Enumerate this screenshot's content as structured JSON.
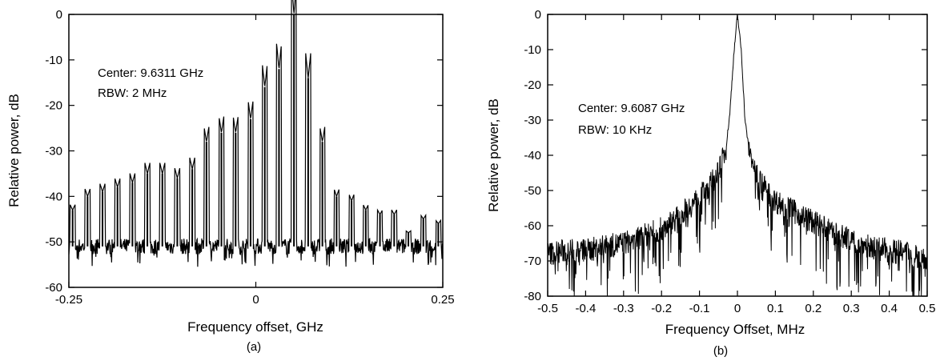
{
  "chart_data": [
    {
      "type": "line",
      "panel_label": "(a)",
      "xlabel": "Frequency offset, GHz",
      "ylabel": "Relative power, dB",
      "xlim": [
        -0.25,
        0.25
      ],
      "ylim": [
        -60,
        0
      ],
      "xticks": [
        -0.25,
        0,
        0.25
      ],
      "xtick_labels": [
        "-0.25",
        "0",
        "0.25"
      ],
      "yticks": [
        0,
        -10,
        -20,
        -30,
        -40,
        -50,
        -60
      ],
      "ytick_labels": [
        "0",
        "-10",
        "-20",
        "-30",
        "-40",
        "-50",
        "-60"
      ],
      "annotations": [
        "Center: 9.6311 GHz",
        "RBW: 2 MHz"
      ],
      "noise_floor_db": -51,
      "grid": false,
      "series": [
        {
          "x": [
            -0.245,
            -0.225,
            -0.205,
            -0.185,
            -0.165,
            -0.145,
            -0.125,
            -0.105,
            -0.085,
            -0.066,
            -0.046,
            -0.027,
            -0.007,
            0.012,
            0.031,
            0.051,
            0.07,
            0.089,
            0.108,
            0.128,
            0.147,
            0.166,
            0.185,
            0.204,
            0.224,
            0.244
          ],
          "y": [
            -43,
            -40,
            -39,
            -38,
            -37,
            -35,
            -35,
            -36,
            -34,
            -28,
            -26,
            -26,
            -23,
            -16,
            -12,
            0,
            -14,
            -28,
            -40,
            -41,
            -43,
            -44,
            -44,
            -48,
            -45,
            -46
          ]
        }
      ]
    },
    {
      "type": "line",
      "panel_label": "(b)",
      "xlabel": "Frequency Offset, MHz",
      "ylabel": "Relative power, dB",
      "xlim": [
        -0.5,
        0.5
      ],
      "ylim": [
        -80,
        0
      ],
      "xticks": [
        -0.5,
        -0.4,
        -0.3,
        -0.2,
        -0.1,
        0,
        0.1,
        0.2,
        0.3,
        0.4,
        0.5
      ],
      "xtick_labels": [
        "-0.5",
        "-0.4",
        "-0.3",
        "-0.2",
        "-0.1",
        "0",
        "0.1",
        "0.2",
        "0.3",
        "0.4",
        "0.5"
      ],
      "yticks": [
        0,
        -10,
        -20,
        -30,
        -40,
        -50,
        -60,
        -70,
        -80
      ],
      "ytick_labels": [
        "0",
        "-10",
        "-20",
        "-30",
        "-40",
        "-50",
        "-60",
        "-70",
        "-80"
      ],
      "annotations": [
        "Center: 9.6087 GHz",
        "RBW: 10 KHz"
      ],
      "grid": false,
      "series": [
        {
          "x": [
            -0.5,
            -0.45,
            -0.4,
            -0.35,
            -0.3,
            -0.25,
            -0.2,
            -0.15,
            -0.1,
            -0.07,
            -0.05,
            -0.03,
            -0.02,
            -0.01,
            0,
            0.01,
            0.02,
            0.03,
            0.05,
            0.07,
            0.1,
            0.15,
            0.2,
            0.25,
            0.3,
            0.35,
            0.4,
            0.45,
            0.5
          ],
          "y": [
            -68,
            -67,
            -67,
            -66,
            -65,
            -63,
            -61,
            -57,
            -52,
            -48,
            -45,
            -38,
            -28,
            -12,
            0,
            -10,
            -30,
            -38,
            -45,
            -49,
            -53,
            -56,
            -59,
            -62,
            -64,
            -66,
            -67,
            -68,
            -69
          ]
        }
      ]
    }
  ]
}
